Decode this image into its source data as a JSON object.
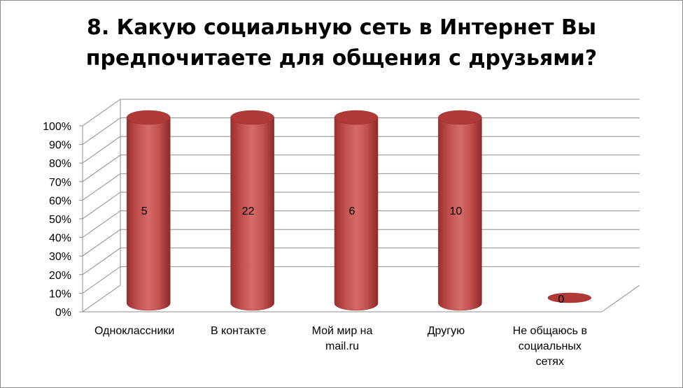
{
  "chart_data": {
    "type": "bar",
    "style": "3d-cylinder-stacked-100",
    "title": [
      "8. Какую социальную сеть в Интернет Вы",
      "предпочитаете для общения с друзьями?"
    ],
    "categories": [
      [
        "Одноклассники"
      ],
      [
        "В контакте"
      ],
      [
        "Мой мир на",
        "mail.ru"
      ],
      [
        "Другую"
      ],
      [
        "Не общаюсь в",
        "социальных",
        "сетях"
      ]
    ],
    "values": [
      5,
      22,
      6,
      10,
      0
    ],
    "percent_values": [
      100,
      100,
      100,
      100,
      0
    ],
    "data_labels": [
      "5",
      "22",
      "6",
      "10",
      "0"
    ],
    "y_ticks": [
      "0%",
      "10%",
      "20%",
      "30%",
      "40%",
      "50%",
      "60%",
      "70%",
      "80%",
      "90%",
      "100%"
    ],
    "ylim": [
      0,
      100
    ],
    "grid": true,
    "legend": "none",
    "colors": {
      "bar": "#c0504d",
      "bar_top": "#b03a37",
      "grid": "#8c8c8c",
      "border": "#8c8c8c"
    }
  }
}
